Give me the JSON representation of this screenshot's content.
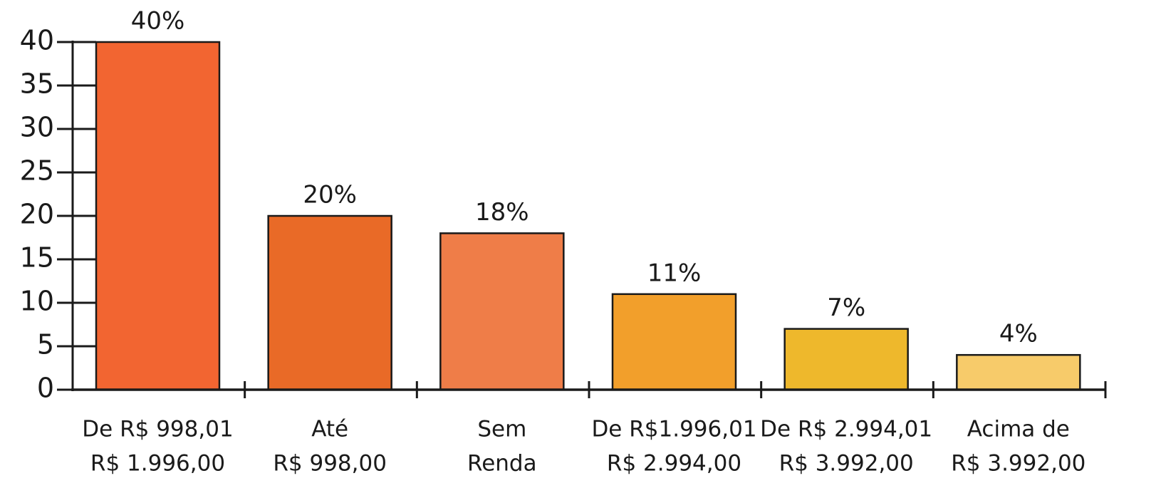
{
  "chart_data": {
    "type": "bar",
    "categories": [
      [
        "De R$ 998,01",
        "R$ 1.996,00"
      ],
      [
        "Até",
        "R$ 998,00"
      ],
      [
        "Sem",
        "Renda"
      ],
      [
        "De R$1.996,01",
        "R$ 2.994,00"
      ],
      [
        "De R$ 2.994,01",
        "R$ 3.992,00"
      ],
      [
        "Acima de",
        "R$ 3.992,00"
      ]
    ],
    "values": [
      40,
      20,
      18,
      11,
      7,
      4
    ],
    "value_labels": [
      "40%",
      "20%",
      "18%",
      "11%",
      "7%",
      "4%"
    ],
    "colors": [
      "#f26531",
      "#e96a27",
      "#ef7d48",
      "#f29f2b",
      "#eeb82c",
      "#f7cb6a"
    ],
    "ylim": [
      0,
      40
    ],
    "yticks": [
      0,
      5,
      10,
      15,
      20,
      25,
      30,
      35,
      40
    ]
  }
}
